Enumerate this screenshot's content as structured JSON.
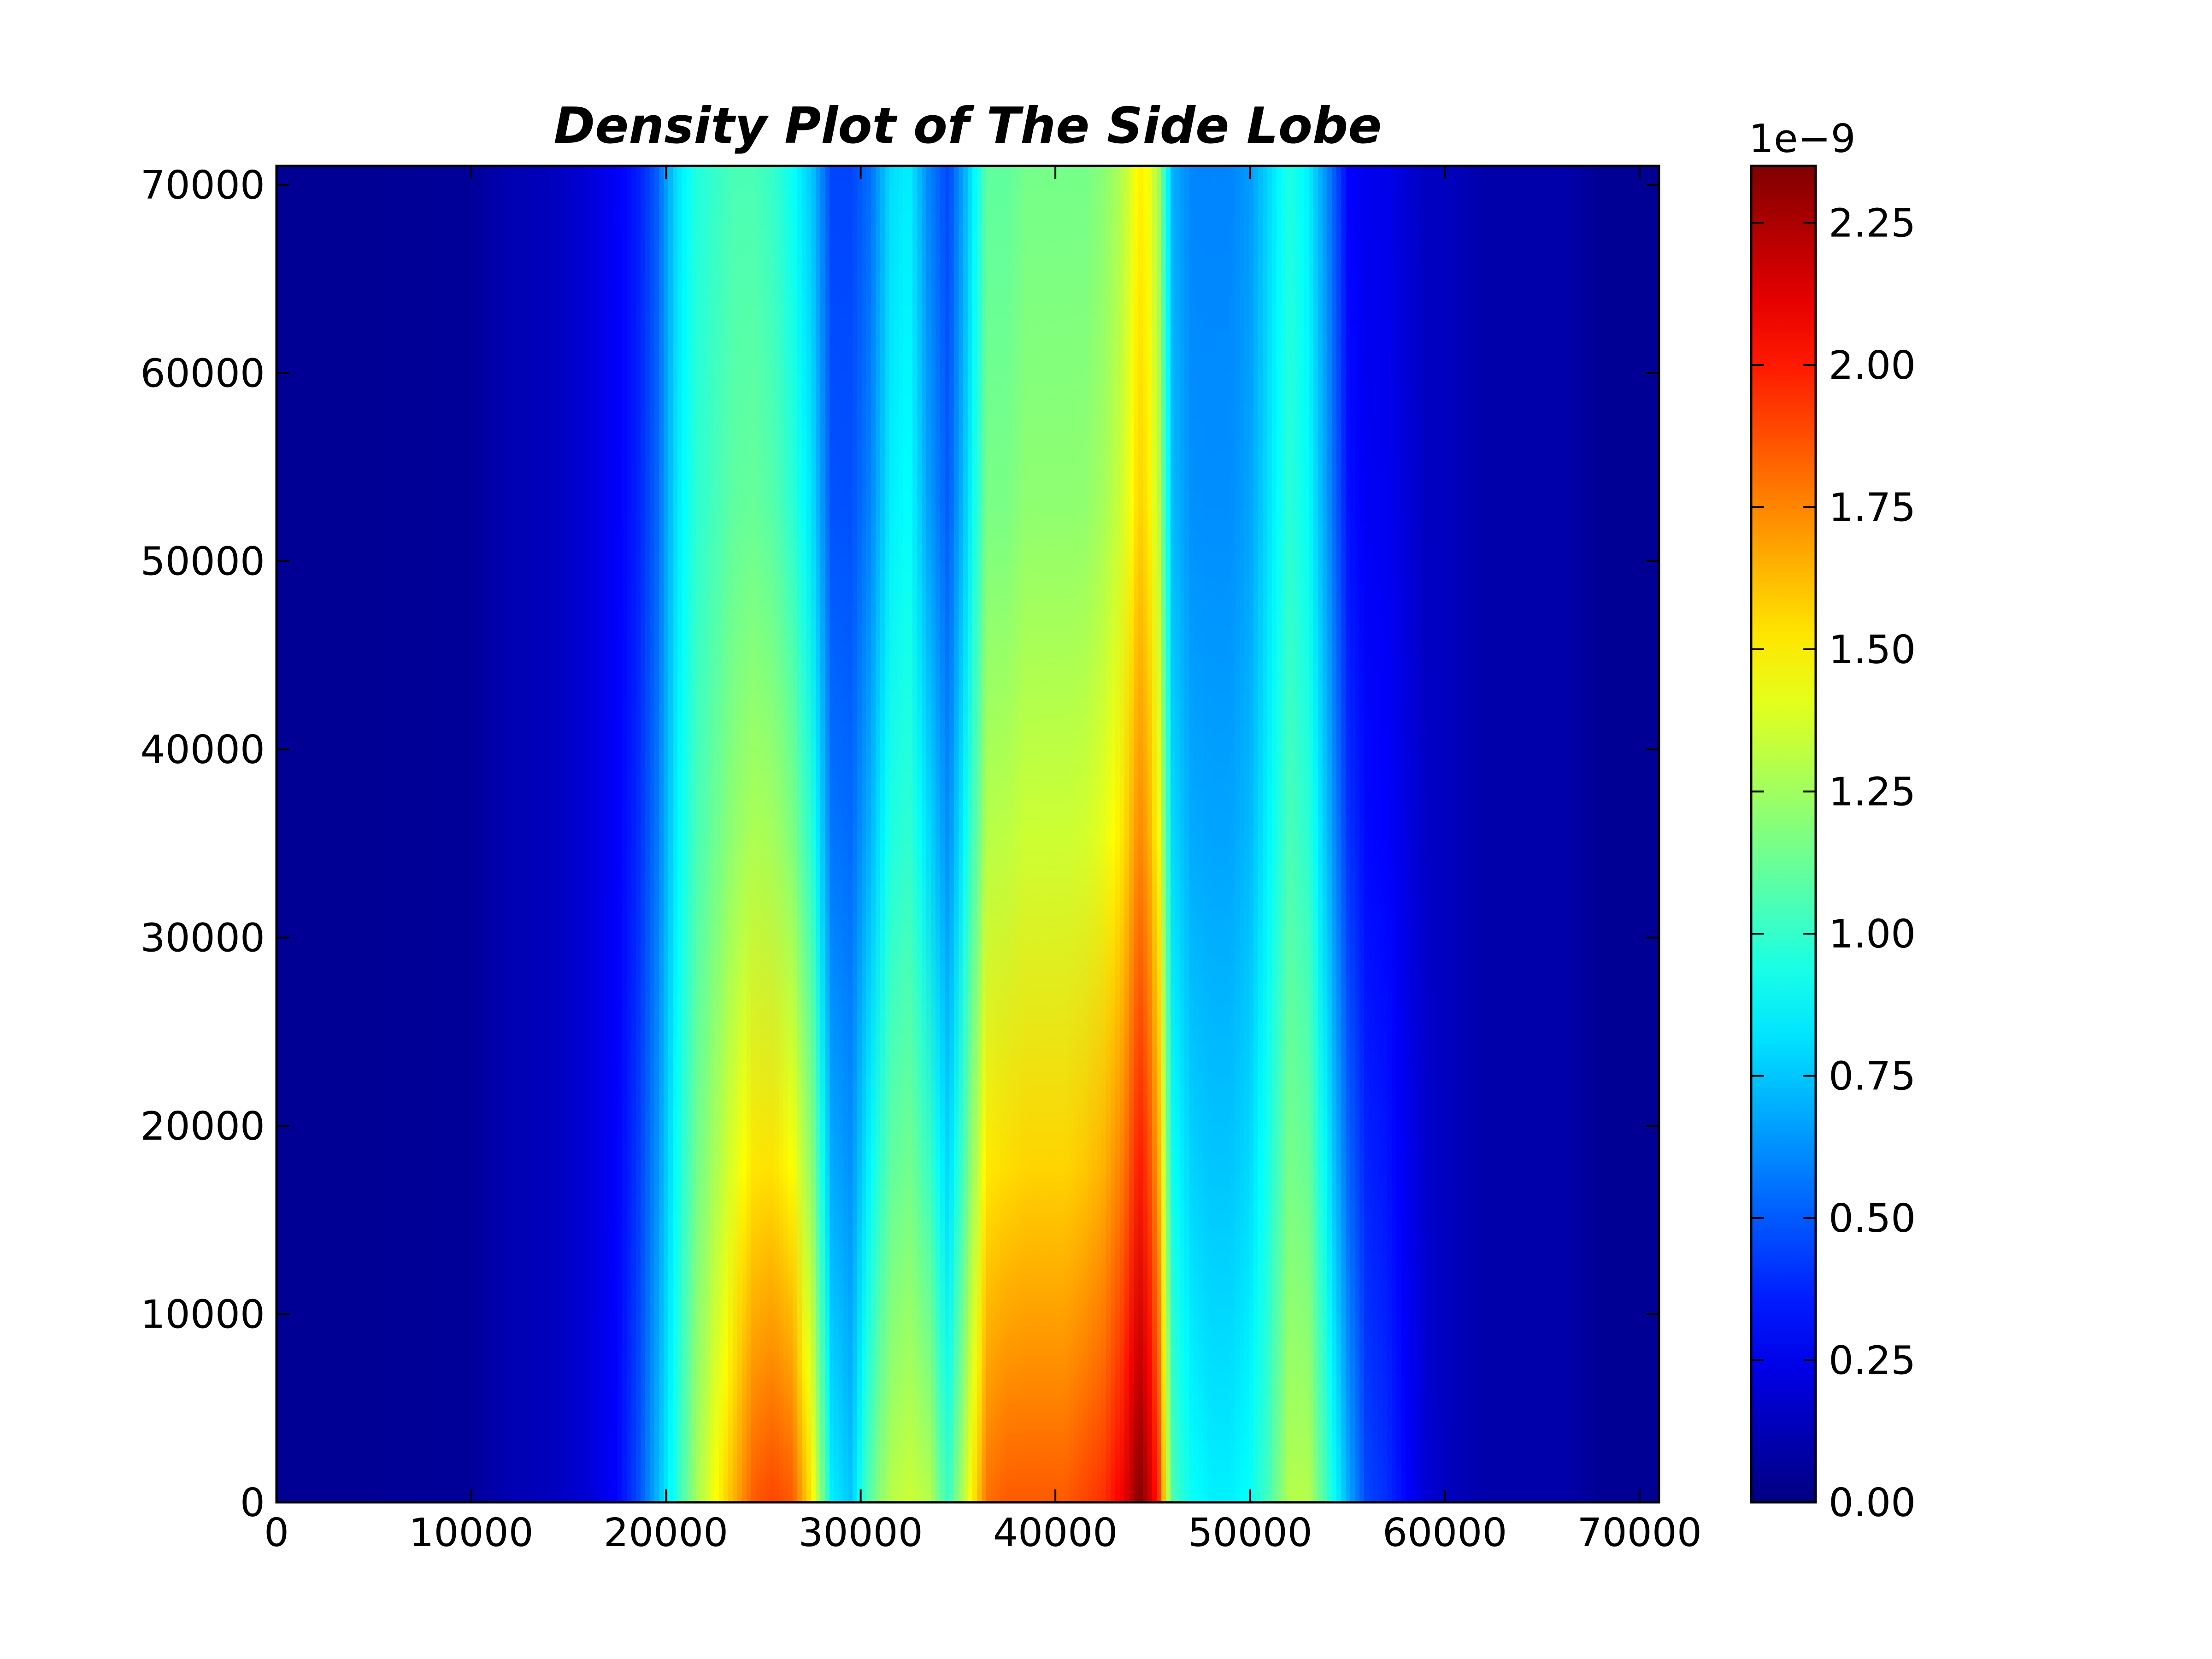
{
  "chart_data": {
    "type": "heatmap",
    "title": "Density Plot of The Side Lobe",
    "xlabel": "",
    "ylabel": "",
    "xlim": [
      0,
      71000
    ],
    "ylim": [
      0,
      71000
    ],
    "x_ticks": [
      0,
      10000,
      20000,
      30000,
      40000,
      50000,
      60000,
      70000
    ],
    "y_ticks": [
      0,
      10000,
      20000,
      30000,
      40000,
      50000,
      60000,
      70000
    ],
    "x_tick_labels": [
      "0",
      "10000",
      "20000",
      "30000",
      "40000",
      "50000",
      "60000",
      "70000"
    ],
    "y_tick_labels": [
      "0",
      "10000",
      "20000",
      "30000",
      "40000",
      "50000",
      "60000",
      "70000"
    ],
    "colormap": "jet",
    "colorbar": {
      "range": [
        0,
        2.35
      ],
      "offset_label": "1e−9",
      "ticks": [
        0,
        0.25,
        0.5,
        0.75,
        1.0,
        1.25,
        1.5,
        1.75,
        2.0,
        2.25
      ],
      "tick_labels": [
        "0.00",
        "0.25",
        "0.50",
        "0.75",
        "1.00",
        "1.25",
        "1.50",
        "1.75",
        "2.00",
        "2.25"
      ]
    },
    "profile_note_units": "value in units of 1e-9",
    "profiles": {
      "x": [
        0,
        5000,
        10000,
        12000,
        14000,
        16000,
        17500,
        18500,
        19500,
        20500,
        21500,
        22500,
        23500,
        24500,
        25500,
        26500,
        27500,
        28500,
        29500,
        30500,
        31500,
        32500,
        33500,
        34500,
        35500,
        36500,
        37500,
        38500,
        39500,
        40500,
        41500,
        42500,
        43500,
        44300,
        44800,
        45300,
        46000,
        47000,
        48000,
        49000,
        50000,
        51000,
        52000,
        53000,
        54000,
        55000,
        56000,
        57000,
        58000,
        59000,
        60000,
        62000,
        64000,
        66000,
        68000,
        71000
      ],
      "top_y": 71000,
      "top": [
        0.05,
        0.05,
        0.06,
        0.12,
        0.14,
        0.2,
        0.28,
        0.35,
        0.5,
        0.8,
        0.95,
        1.0,
        1.05,
        1.05,
        1.0,
        0.9,
        0.75,
        0.45,
        0.45,
        0.55,
        0.8,
        0.85,
        0.6,
        0.45,
        0.75,
        1.1,
        1.1,
        1.15,
        1.15,
        1.15,
        1.15,
        1.2,
        1.3,
        1.5,
        1.45,
        1.25,
        0.7,
        0.6,
        0.6,
        0.6,
        0.65,
        0.8,
        0.95,
        0.85,
        0.6,
        0.3,
        0.25,
        0.25,
        0.2,
        0.15,
        0.15,
        0.1,
        0.1,
        0.1,
        0.05,
        0.05
      ],
      "bottom_y": 0,
      "bottom": [
        0.05,
        0.05,
        0.06,
        0.12,
        0.14,
        0.2,
        0.3,
        0.45,
        0.7,
        0.95,
        1.25,
        1.45,
        1.65,
        1.85,
        1.9,
        1.85,
        1.5,
        0.85,
        0.75,
        1.1,
        1.3,
        1.35,
        1.3,
        1.0,
        1.4,
        1.8,
        1.85,
        1.85,
        1.85,
        1.85,
        1.9,
        1.95,
        2.1,
        2.35,
        2.2,
        1.95,
        1.05,
        0.9,
        0.85,
        0.85,
        0.9,
        1.05,
        1.3,
        1.3,
        1.0,
        0.7,
        0.45,
        0.4,
        0.3,
        0.2,
        0.15,
        0.1,
        0.1,
        0.1,
        0.05,
        0.05
      ]
    }
  }
}
